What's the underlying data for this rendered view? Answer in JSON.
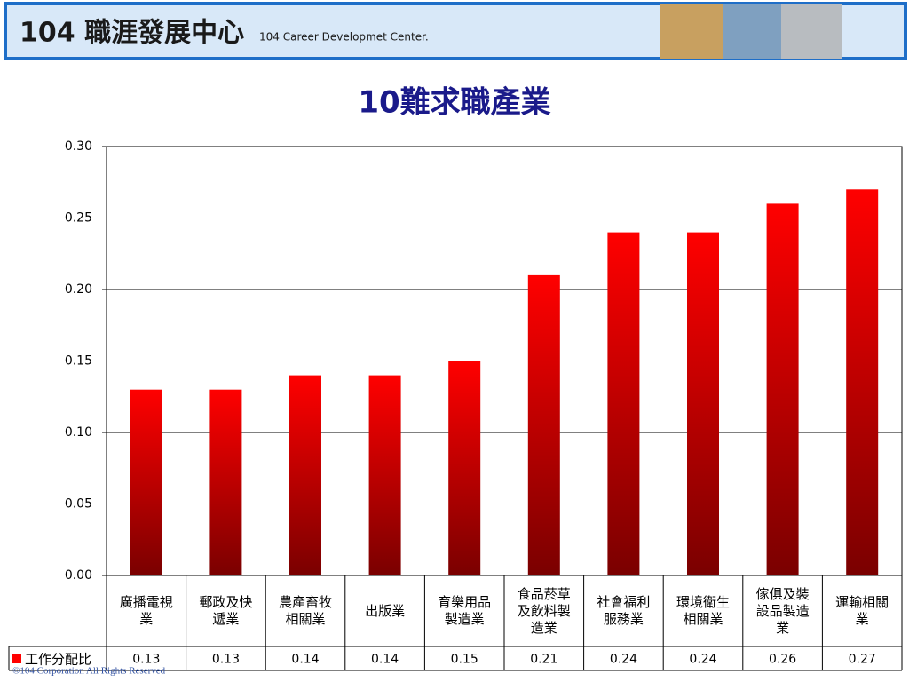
{
  "header": {
    "logo": "104 職涯發展中心",
    "subtitle": "104 Career Developmet Center."
  },
  "chart_data": {
    "type": "bar",
    "title": "10難求職產業",
    "categories": [
      "廣播電視業",
      "郵政及快遞業",
      "農產畜牧相關業",
      "出版業",
      "育樂用品製造業",
      "食品菸草及飲料製造業",
      "社會福利服務業",
      "環境衛生相關業",
      "傢俱及裝設品製造業",
      "運輸相關業"
    ],
    "series": [
      {
        "name": "工作分配比",
        "color": "#ff0000",
        "values": [
          0.13,
          0.13,
          0.14,
          0.14,
          0.15,
          0.21,
          0.24,
          0.24,
          0.26,
          0.27
        ]
      }
    ],
    "ylim": [
      0,
      0.3
    ],
    "yticks": [
      {
        "value": 0,
        "label": "0.00"
      },
      {
        "value": 0.05,
        "label": "0.05"
      },
      {
        "value": 0.1,
        "label": "0.10"
      },
      {
        "value": 0.15,
        "label": "0.15"
      },
      {
        "value": 0.2,
        "label": "0.20"
      },
      {
        "value": 0.25,
        "label": "0.25"
      },
      {
        "value": 0.3,
        "label": "0.30"
      }
    ],
    "grid": true
  },
  "footer": "©104 Corporation All Rights Reserved"
}
